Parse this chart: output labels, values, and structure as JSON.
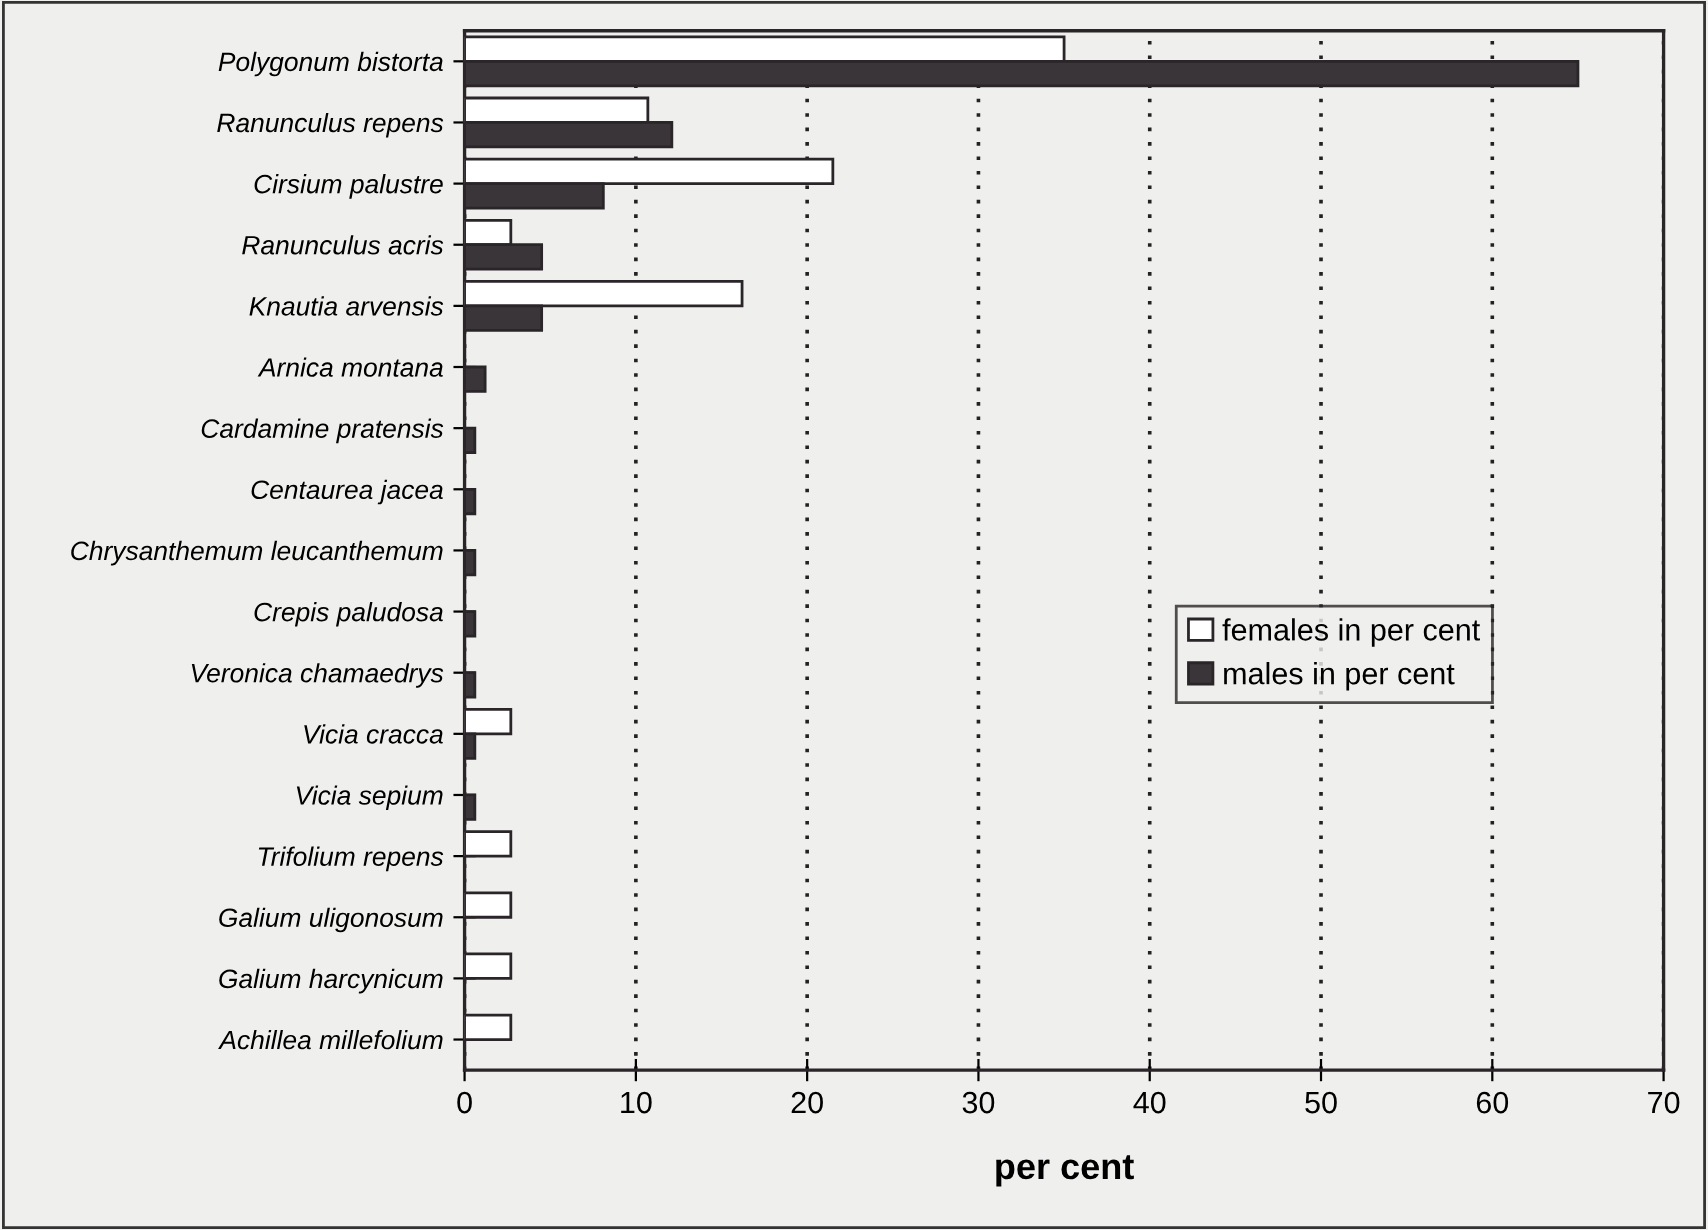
{
  "chart_data": {
    "type": "bar",
    "orientation": "horizontal",
    "xlabel": "per cent",
    "categories": [
      "Polygonum bistorta",
      "Ranunculus repens",
      "Cirsium palustre",
      "Ranunculus acris",
      "Knautia arvensis",
      "Arnica montana",
      "Cardamine pratensis",
      "Centaurea jacea",
      "Chrysanthemum leucanthemum",
      "Crepis paludosa",
      "Veronica chamaedrys",
      "Vicia cracca",
      "Vicia sepium",
      "Trifolium repens",
      "Galium uligonosum",
      "Galium harcynicum",
      "Achillea millefolium"
    ],
    "series": [
      {
        "name": "females in per cent",
        "color": "#ffffff",
        "values": [
          35,
          10.7,
          21.5,
          2.7,
          16.2,
          null,
          null,
          null,
          null,
          null,
          null,
          2.7,
          null,
          2.7,
          2.7,
          2.7,
          2.7
        ]
      },
      {
        "name": "males in per cent",
        "color": "#3a3538",
        "values": [
          65,
          12.1,
          8.1,
          4.5,
          4.5,
          1.2,
          0.6,
          0.6,
          0.6,
          0.6,
          0.6,
          0.6,
          0.6,
          null,
          null,
          null,
          null
        ]
      }
    ],
    "xlim": [
      0,
      70
    ],
    "xticks": [
      0,
      10,
      20,
      30,
      40,
      50,
      60,
      70
    ],
    "grid": "x",
    "legend": "right"
  }
}
